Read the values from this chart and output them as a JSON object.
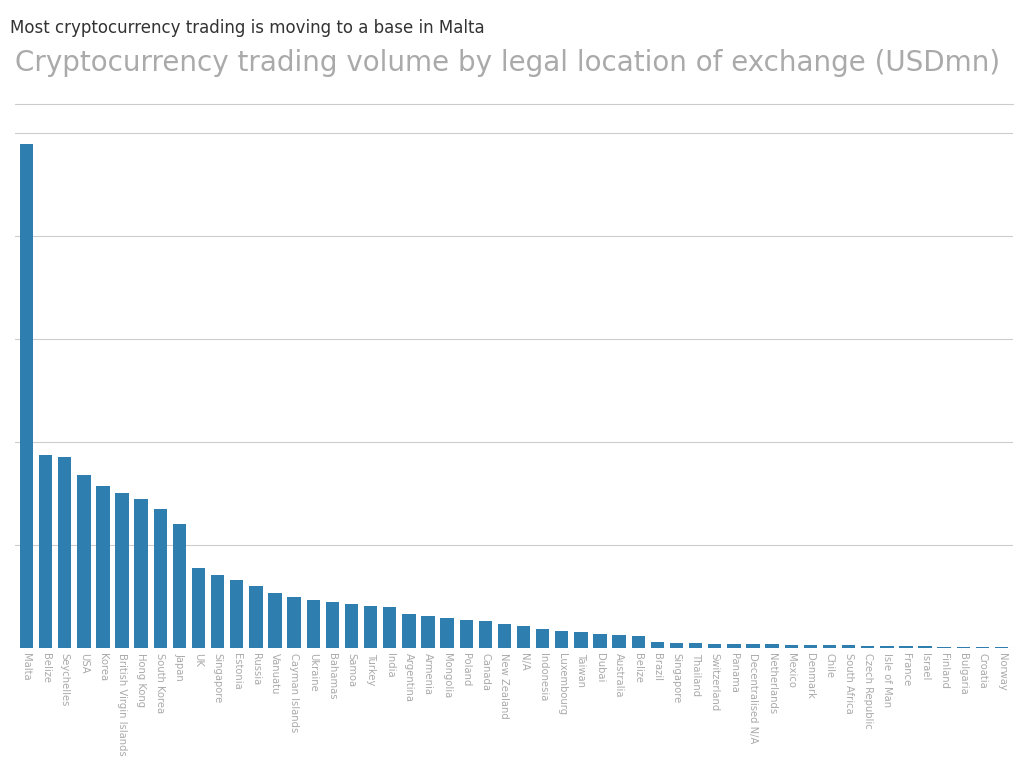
{
  "title": "Most cryptocurrency trading is moving to a base in Malta",
  "subtitle": "Cryptocurrency trading volume by legal location of exchange (USDmn)",
  "bar_color": "#2e7fb0",
  "background_color": "#ffffff",
  "categories": [
    "Malta",
    "Belize",
    "Seychelles",
    "USA",
    "Korea",
    "British Virgin Islands",
    "Hong Kong",
    "South Korea",
    "Japan",
    "UK",
    "Singapore",
    "Estonia",
    "Russia",
    "Vanuatu",
    "Cayman Islands",
    "Ukraine",
    "Bahamas",
    "Samoa",
    "Turkey",
    "India",
    "Argentina",
    "Armenia",
    "Mongolia",
    "Poland",
    "Canada",
    "New Zealand",
    "N/A",
    "Indonesia",
    "Luxembourg",
    "Taiwan",
    "Dubai",
    "Australia",
    "Belize",
    "Brazil",
    "Singapore",
    "Thailand",
    "Switzerland",
    "Panama",
    "Decentralised N/A",
    "Netherlands",
    "Mexico",
    "Denmark",
    "Chile",
    "South Africa",
    "Czech Republic",
    "Isle of Man",
    "France",
    "Israel",
    "Finland",
    "Bulgaria",
    "Croatia",
    "Norway"
  ],
  "values": [
    9800,
    3750,
    3700,
    3350,
    3150,
    3000,
    2900,
    2700,
    2400,
    1550,
    1420,
    1320,
    1200,
    1060,
    980,
    920,
    880,
    850,
    820,
    790,
    660,
    610,
    580,
    545,
    510,
    455,
    415,
    360,
    330,
    300,
    270,
    250,
    230,
    105,
    95,
    88,
    80,
    75,
    70,
    65,
    60,
    55,
    50,
    45,
    40,
    35,
    30,
    25,
    20,
    15,
    10,
    8
  ],
  "ylim": [
    0,
    10500
  ],
  "grid_color": "#cccccc",
  "grid_linewidth": 0.8,
  "title_fontsize": 12,
  "subtitle_fontsize": 20,
  "tick_label_color": "#aaaaaa",
  "title_color": "#333333",
  "subtitle_color": "#aaaaaa",
  "subtitle_line_color": "#cccccc",
  "bar_width": 0.7
}
